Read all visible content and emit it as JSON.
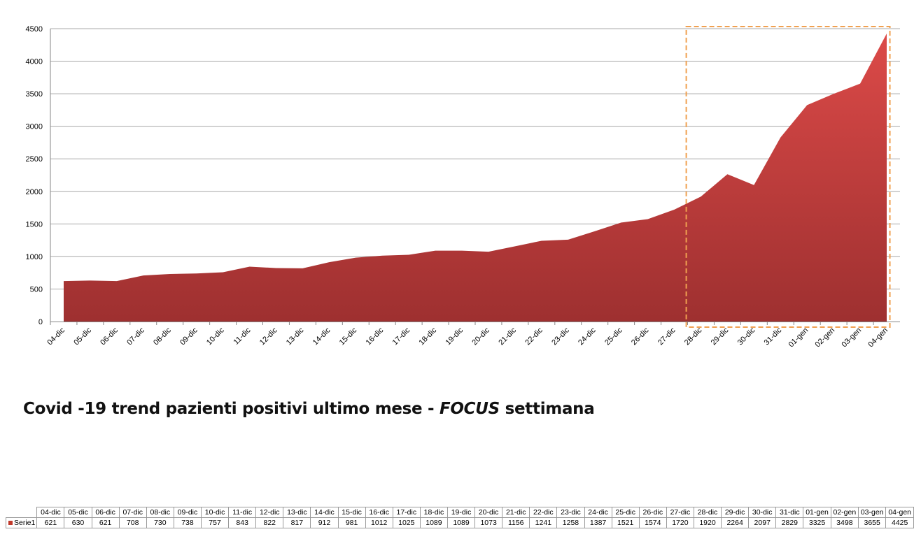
{
  "chart_data": {
    "type": "area",
    "title": "Covid -19 trend pazienti positivi ultimo mese - ",
    "title_emphasis": "FOCUS",
    "title_suffix": " settimana",
    "categories": [
      "04-dic",
      "05-dic",
      "06-dic",
      "07-dic",
      "08-dic",
      "09-dic",
      "10-dic",
      "11-dic",
      "12-dic",
      "13-dic",
      "14-dic",
      "15-dic",
      "16-dic",
      "17-dic",
      "18-dic",
      "19-dic",
      "20-dic",
      "21-dic",
      "22-dic",
      "23-dic",
      "24-dic",
      "25-dic",
      "26-dic",
      "27-dic",
      "28-dic",
      "29-dic",
      "30-dic",
      "31-dic",
      "01-gen",
      "02-gen",
      "03-gen",
      "04-gen"
    ],
    "series": [
      {
        "name": "Serie1",
        "values": [
          621,
          630,
          621,
          708,
          730,
          738,
          757,
          843,
          822,
          817,
          912,
          981,
          1012,
          1025,
          1089,
          1089,
          1073,
          1156,
          1241,
          1258,
          1387,
          1521,
          1574,
          1720,
          1920,
          2264,
          2097,
          2829,
          3325,
          3498,
          3655,
          4425
        ]
      }
    ],
    "ylim": [
      0,
      4500
    ],
    "yticks": [
      0,
      500,
      1000,
      1500,
      2000,
      2500,
      3000,
      3500,
      4000,
      4500
    ],
    "grid": true,
    "legend": "data-table-bottom",
    "highlight": {
      "from": "28-dic",
      "to": "04-gen",
      "style": "dashed",
      "color": "#f0a050"
    },
    "colors": {
      "area_top": "#dc4a48",
      "area_bottom": "#9e3030",
      "grid": "#a8a8a8",
      "swatch": "#c0392b"
    }
  }
}
